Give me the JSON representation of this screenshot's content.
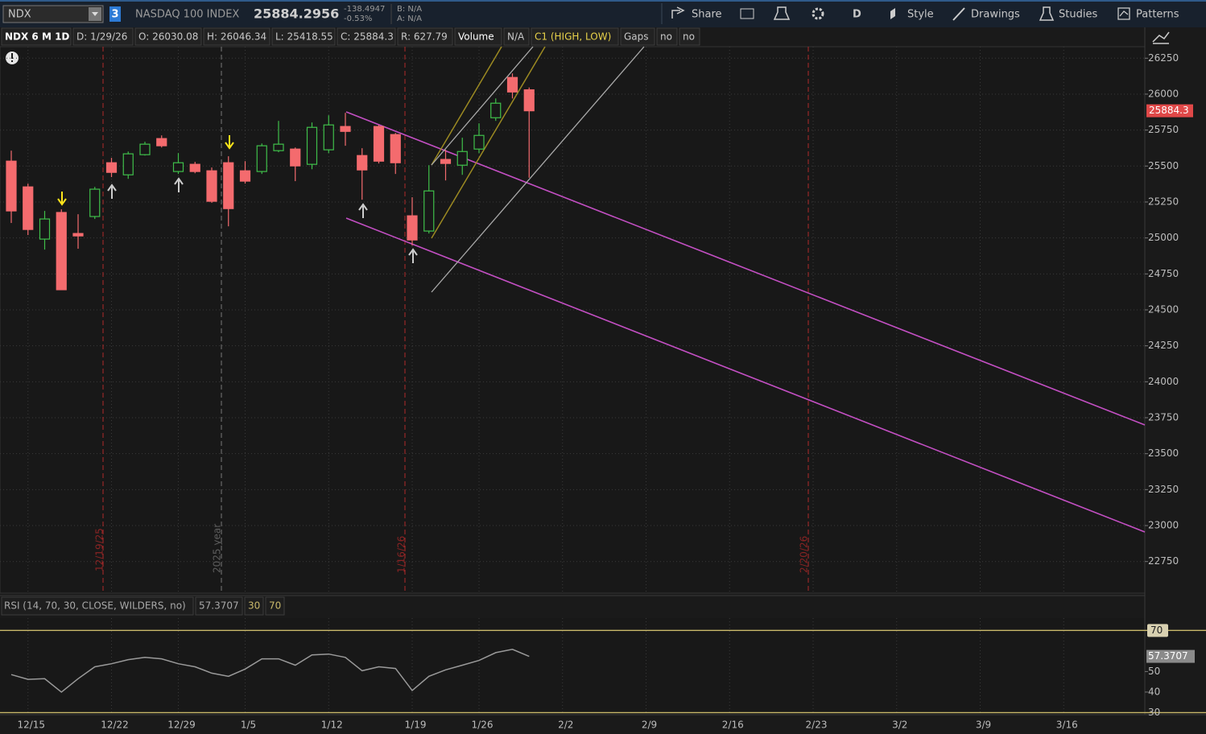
{
  "toolbar": {
    "symbol": "NDX",
    "link_group": "3",
    "description": "NASDAQ 100 INDEX",
    "last": "25884.2956",
    "net_change": "-138.4947",
    "pct_change": "-0.53%",
    "bid": "B: N/A",
    "ask": "A: N/A",
    "share": "Share",
    "aggregation": "D",
    "style": "Style",
    "drawings": "Drawings",
    "studies": "Studies",
    "patterns": "Patterns"
  },
  "info_bar": [
    "NDX 6 M 1D",
    "D: 1/29/26",
    "O: 26030.08",
    "H: 26046.34",
    "L: 25418.55",
    "C: 25884.3",
    "R: 627.79",
    "Volume",
    "N/A",
    "C1 (HIGH, LOW)",
    "Gaps",
    "no",
    "no"
  ],
  "chart_data": [
    {
      "type": "candlestick",
      "categories": [
        null,
        "12/15",
        null,
        null,
        null,
        null,
        "12/22",
        null,
        null,
        null,
        "12/29",
        null,
        null,
        null,
        "1/5",
        null,
        null,
        null,
        null,
        "1/12",
        null,
        null,
        null,
        null,
        "1/19",
        null,
        null,
        null,
        "1/26",
        null,
        null,
        null,
        null,
        "2/2",
        null,
        null,
        null,
        null,
        "2/9",
        null,
        null,
        null,
        null,
        "2/16",
        null,
        null,
        null,
        null,
        "2/23",
        null,
        null,
        null,
        null,
        "3/2",
        null,
        null,
        null,
        null,
        "3/9",
        null,
        null,
        null,
        null,
        "3/16",
        null,
        null,
        null,
        null
      ],
      "open": [
        25534,
        25355,
        24992,
        25177,
        25031,
        25149,
        25523,
        25439,
        25579,
        25691,
        25462,
        25512,
        25467,
        25523,
        25467,
        25462,
        25607,
        25618,
        25512,
        25613,
        25775,
        25573,
        25775,
        25719,
        25154,
        25048,
        25546,
        25506,
        25618,
        25836,
        26116,
        26030.08,
        null,
        null,
        null,
        null,
        null,
        null,
        null,
        null,
        null,
        null,
        null,
        null,
        null,
        null,
        null,
        null,
        null,
        null,
        null,
        null,
        null,
        null,
        null,
        null,
        null,
        null,
        null,
        null,
        null,
        null,
        null,
        null,
        null,
        null,
        null,
        null
      ],
      "high": [
        25607,
        25378,
        25188,
        25199,
        25165,
        25355,
        25557,
        25601,
        25669,
        25713,
        25590,
        25529,
        25490,
        25568,
        25534,
        25657,
        25814,
        25629,
        25803,
        25853,
        25870,
        25624,
        25786,
        25730,
        25283,
        25506,
        25613,
        25697,
        25797,
        25970,
        26144,
        26046.34,
        null,
        null,
        null,
        null,
        null,
        null,
        null,
        null,
        null,
        null,
        null,
        null,
        null,
        null,
        null,
        null,
        null,
        null,
        null,
        null,
        null,
        null,
        null,
        null,
        null,
        null,
        null,
        null,
        null,
        null,
        null,
        null,
        null,
        null,
        null,
        null
      ],
      "low": [
        25104,
        25020,
        24919,
        24640,
        24925,
        25132,
        25423,
        25411,
        25573,
        25629,
        25445,
        25450,
        25244,
        25081,
        25378,
        25445,
        25596,
        25395,
        25478,
        25590,
        25641,
        25266,
        25518,
        25445,
        24947,
        25031,
        25400,
        25439,
        25590,
        25814,
        25970,
        25418.55,
        null,
        null,
        null,
        null,
        null,
        null,
        null,
        null,
        null,
        null,
        null,
        null,
        null,
        null,
        null,
        null,
        null,
        null,
        null,
        null,
        null,
        null,
        null,
        null,
        null,
        null,
        null,
        null,
        null,
        null,
        null,
        null,
        null,
        null,
        null,
        null
      ],
      "close": [
        25188,
        25059,
        25132,
        24640,
        25014,
        25339,
        25456,
        25585,
        25652,
        25641,
        25523,
        25462,
        25255,
        25204,
        25395,
        25641,
        25652,
        25501,
        25769,
        25786,
        25741,
        25473,
        25534,
        25523,
        24986,
        25327,
        25518,
        25601,
        25713,
        25937,
        26015,
        25884.3,
        null,
        null,
        null,
        null,
        null,
        null,
        null,
        null,
        null,
        null,
        null,
        null,
        null,
        null,
        null,
        null,
        null,
        null,
        null,
        null,
        null,
        null,
        null,
        null,
        null,
        null,
        null,
        null,
        null,
        null,
        null,
        null,
        null,
        null,
        null,
        null
      ],
      "up_color": "#3fbf4a",
      "down_color": "#f46b6e",
      "ylim": [
        22530,
        26330
      ],
      "yticks": [
        22750,
        23000,
        23250,
        23500,
        23750,
        24000,
        24250,
        24500,
        24750,
        25000,
        25250,
        25500,
        25750,
        26000,
        26250
      ],
      "grid": true,
      "annotations": [
        "12/19/25",
        "2025 year",
        "1/16/26",
        "2/20/26"
      ]
    },
    {
      "type": "line",
      "title": "RSI (14, 70, 30, CLOSE, WILDERS, no)",
      "color": "#9a9a9a",
      "values": [
        48.5,
        46.2,
        46.5,
        40,
        46.5,
        52.3,
        53.8,
        55.8,
        56.9,
        56.2,
        53.8,
        52.3,
        49.2,
        47.7,
        51.2,
        56.2,
        56.2,
        53.1,
        58.1,
        58.5,
        56.9,
        50.4,
        52.3,
        51.5,
        40.8,
        47.7,
        50.8,
        53.1,
        55.4,
        59.2,
        60.8,
        57.3707,
        null,
        null,
        null,
        null,
        null,
        null,
        null,
        null,
        null,
        null,
        null,
        null,
        null,
        null,
        null,
        null,
        null,
        null,
        null,
        null,
        null,
        null,
        null,
        null,
        null,
        null,
        null,
        null,
        null,
        null,
        null,
        null,
        null,
        null,
        null,
        null
      ],
      "ylim": [
        29,
        76
      ],
      "yticks": [
        30,
        40,
        50,
        70
      ],
      "level_color": "#c9b86a"
    }
  ]
}
